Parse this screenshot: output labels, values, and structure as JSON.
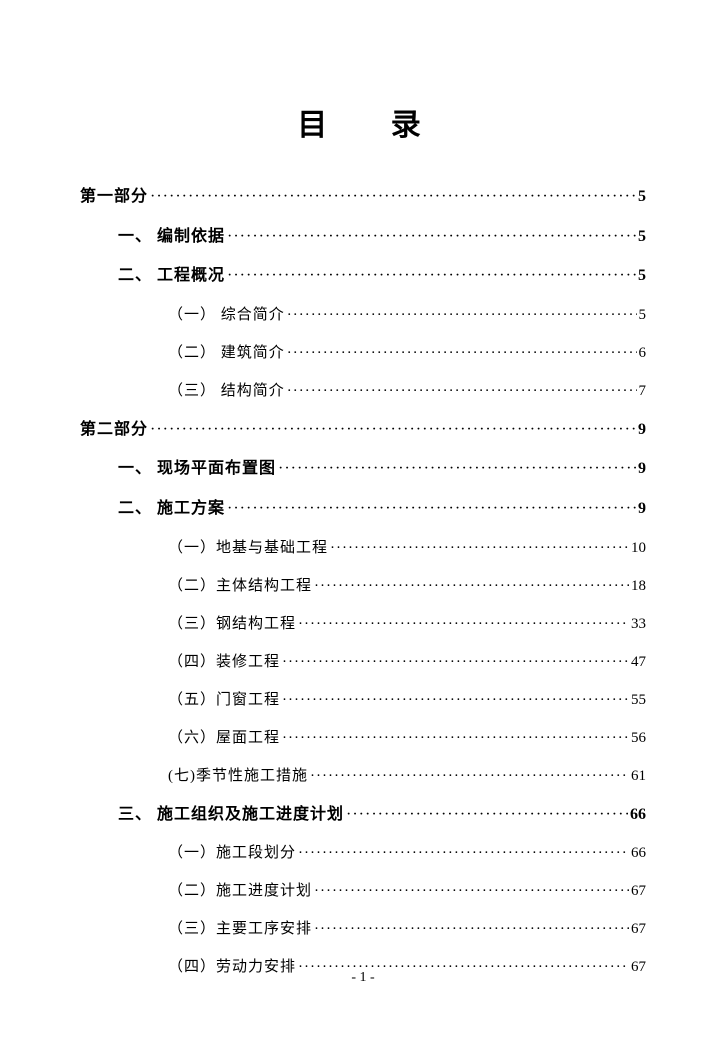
{
  "title": "目  录",
  "entries": [
    {
      "level": "part",
      "label": "第一部分",
      "page": "5"
    },
    {
      "level": "section",
      "label": "一、 编制依据",
      "page": "5"
    },
    {
      "level": "section",
      "label": "二、 工程概况",
      "page": "5"
    },
    {
      "level": "subsection",
      "label": "（一） 综合简介",
      "page": "5"
    },
    {
      "level": "subsection",
      "label": "（二） 建筑简介",
      "page": "6"
    },
    {
      "level": "subsection",
      "label": "（三） 结构简介",
      "page": "7"
    },
    {
      "level": "part",
      "label": "第二部分",
      "page": "9"
    },
    {
      "level": "section",
      "label": "一、 现场平面布置图",
      "page": "9"
    },
    {
      "level": "section",
      "label": "二、 施工方案",
      "page": "9"
    },
    {
      "level": "subsection",
      "label": "（一）地基与基础工程",
      "page": "10"
    },
    {
      "level": "subsection",
      "label": "（二）主体结构工程",
      "page": "18"
    },
    {
      "level": "subsection",
      "label": "（三）钢结构工程",
      "page": "33"
    },
    {
      "level": "subsection",
      "label": "（四）装修工程",
      "page": "47"
    },
    {
      "level": "subsection",
      "label": "（五）门窗工程",
      "page": "55"
    },
    {
      "level": "subsection",
      "label": "（六）屋面工程",
      "page": "56"
    },
    {
      "level": "subsection",
      "label": "(七)季节性施工措施",
      "page": "61"
    },
    {
      "level": "section",
      "label": "三、 施工组织及施工进度计划",
      "page": "66"
    },
    {
      "level": "subsection",
      "label": "（一）施工段划分",
      "page": "66"
    },
    {
      "level": "subsection",
      "label": "（二）施工进度计划",
      "page": "67"
    },
    {
      "level": "subsection",
      "label": "（三）主要工序安排",
      "page": "67"
    },
    {
      "level": "subsection",
      "label": "（四）劳动力安排",
      "page": "67"
    }
  ],
  "page_number": "- 1 -",
  "colors": {
    "text": "#000000",
    "background": "#ffffff"
  },
  "typography": {
    "title_fontsize": 30,
    "part_fontsize": 16,
    "section_fontsize": 16,
    "subsection_fontsize": 15,
    "font_family": "SimSun"
  }
}
